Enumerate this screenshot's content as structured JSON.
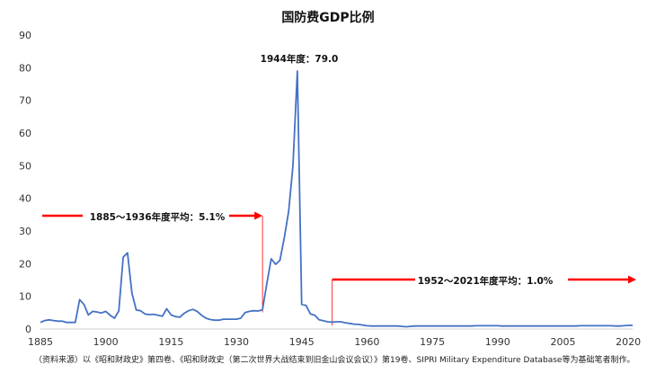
{
  "chart_data": {
    "type": "line",
    "title": "国防费GDP比例",
    "xlabel": "",
    "ylabel": "",
    "xlim": [
      1885,
      2021
    ],
    "ylim": [
      0,
      90
    ],
    "y_ticks": [
      0,
      10,
      20,
      30,
      40,
      50,
      60,
      70,
      80,
      90
    ],
    "x_ticks": [
      1885,
      1900,
      1915,
      1930,
      1945,
      1960,
      1975,
      1990,
      2005,
      2020
    ],
    "grid": false,
    "legend": "none",
    "series": [
      {
        "color": "#4472C4",
        "points": [
          [
            1885,
            2.0
          ],
          [
            1886,
            2.6
          ],
          [
            1887,
            2.8
          ],
          [
            1888,
            2.6
          ],
          [
            1889,
            2.4
          ],
          [
            1890,
            2.4
          ],
          [
            1891,
            2.0
          ],
          [
            1892,
            2.0
          ],
          [
            1893,
            2.0
          ],
          [
            1894,
            9.0
          ],
          [
            1895,
            7.5
          ],
          [
            1896,
            4.3
          ],
          [
            1897,
            5.4
          ],
          [
            1898,
            5.2
          ],
          [
            1899,
            4.9
          ],
          [
            1900,
            5.4
          ],
          [
            1901,
            4.2
          ],
          [
            1902,
            3.3
          ],
          [
            1903,
            5.5
          ],
          [
            1904,
            22.0
          ],
          [
            1905,
            23.3
          ],
          [
            1906,
            11.0
          ],
          [
            1907,
            5.8
          ],
          [
            1908,
            5.6
          ],
          [
            1909,
            4.6
          ],
          [
            1910,
            4.4
          ],
          [
            1911,
            4.5
          ],
          [
            1912,
            4.2
          ],
          [
            1913,
            3.9
          ],
          [
            1914,
            6.2
          ],
          [
            1915,
            4.3
          ],
          [
            1916,
            3.8
          ],
          [
            1917,
            3.6
          ],
          [
            1918,
            4.8
          ],
          [
            1919,
            5.6
          ],
          [
            1920,
            6.0
          ],
          [
            1921,
            5.4
          ],
          [
            1922,
            4.2
          ],
          [
            1923,
            3.3
          ],
          [
            1924,
            2.9
          ],
          [
            1925,
            2.7
          ],
          [
            1926,
            2.7
          ],
          [
            1927,
            3.0
          ],
          [
            1928,
            3.0
          ],
          [
            1929,
            3.0
          ],
          [
            1930,
            3.0
          ],
          [
            1931,
            3.3
          ],
          [
            1932,
            5.0
          ],
          [
            1933,
            5.4
          ],
          [
            1934,
            5.6
          ],
          [
            1935,
            5.5
          ],
          [
            1936,
            5.9
          ],
          [
            1937,
            14.0
          ],
          [
            1938,
            21.5
          ],
          [
            1939,
            19.8
          ],
          [
            1940,
            21.0
          ],
          [
            1941,
            28.0
          ],
          [
            1942,
            36.0
          ],
          [
            1943,
            50.0
          ],
          [
            1944,
            79.0
          ],
          [
            1945,
            7.5
          ],
          [
            1946,
            7.2
          ],
          [
            1947,
            4.6
          ],
          [
            1948,
            4.2
          ],
          [
            1949,
            2.8
          ],
          [
            1950,
            2.5
          ],
          [
            1951,
            2.2
          ],
          [
            1952,
            2.1
          ],
          [
            1953,
            2.2
          ],
          [
            1954,
            2.2
          ],
          [
            1955,
            1.9
          ],
          [
            1956,
            1.7
          ],
          [
            1957,
            1.5
          ],
          [
            1958,
            1.4
          ],
          [
            1959,
            1.2
          ],
          [
            1960,
            1.0
          ],
          [
            1961,
            0.9
          ],
          [
            1962,
            0.9
          ],
          [
            1963,
            0.9
          ],
          [
            1964,
            0.9
          ],
          [
            1965,
            0.9
          ],
          [
            1966,
            0.9
          ],
          [
            1967,
            0.9
          ],
          [
            1968,
            0.8
          ],
          [
            1969,
            0.7
          ],
          [
            1970,
            0.8
          ],
          [
            1971,
            0.9
          ],
          [
            1972,
            0.9
          ],
          [
            1973,
            0.9
          ],
          [
            1974,
            0.9
          ],
          [
            1975,
            0.9
          ],
          [
            1976,
            0.9
          ],
          [
            1977,
            0.9
          ],
          [
            1978,
            0.9
          ],
          [
            1979,
            0.9
          ],
          [
            1980,
            0.9
          ],
          [
            1981,
            0.9
          ],
          [
            1982,
            0.9
          ],
          [
            1983,
            0.9
          ],
          [
            1984,
            0.9
          ],
          [
            1985,
            1.0
          ],
          [
            1986,
            1.0
          ],
          [
            1987,
            1.0
          ],
          [
            1988,
            1.0
          ],
          [
            1989,
            1.0
          ],
          [
            1990,
            1.0
          ],
          [
            1991,
            0.9
          ],
          [
            1992,
            0.9
          ],
          [
            1993,
            0.9
          ],
          [
            1994,
            0.9
          ],
          [
            1995,
            0.9
          ],
          [
            1996,
            0.9
          ],
          [
            1997,
            0.9
          ],
          [
            1998,
            0.9
          ],
          [
            1999,
            0.9
          ],
          [
            2000,
            0.9
          ],
          [
            2001,
            0.9
          ],
          [
            2002,
            0.9
          ],
          [
            2003,
            0.9
          ],
          [
            2004,
            0.9
          ],
          [
            2005,
            0.9
          ],
          [
            2006,
            0.9
          ],
          [
            2007,
            0.9
          ],
          [
            2008,
            0.9
          ],
          [
            2009,
            1.0
          ],
          [
            2010,
            1.0
          ],
          [
            2011,
            1.0
          ],
          [
            2012,
            1.0
          ],
          [
            2013,
            1.0
          ],
          [
            2014,
            1.0
          ],
          [
            2015,
            1.0
          ],
          [
            2016,
            1.0
          ],
          [
            2017,
            0.9
          ],
          [
            2018,
            0.9
          ],
          [
            2019,
            1.0
          ],
          [
            2020,
            1.1
          ],
          [
            2021,
            1.1
          ]
        ]
      }
    ],
    "annotations": [
      {
        "text": "1944年度：79.0"
      },
      {
        "text": "1885～1936年度平均：5.1%",
        "period": [
          1885,
          1936
        ],
        "value": 5.1
      },
      {
        "text": "1952～2021年度平均：1.0%",
        "period": [
          1952,
          2021
        ],
        "value": 1.0
      }
    ],
    "colors": {
      "series": "#4472C4",
      "arrow": "#FF0000"
    }
  },
  "source_note": "（资料来源）以《昭和财政史》第四卷、《昭和财政史（第二次世界大战结束到旧金山会议会议）》第19卷、SIPRI Military Expenditure Database等为基础笔者制作。"
}
